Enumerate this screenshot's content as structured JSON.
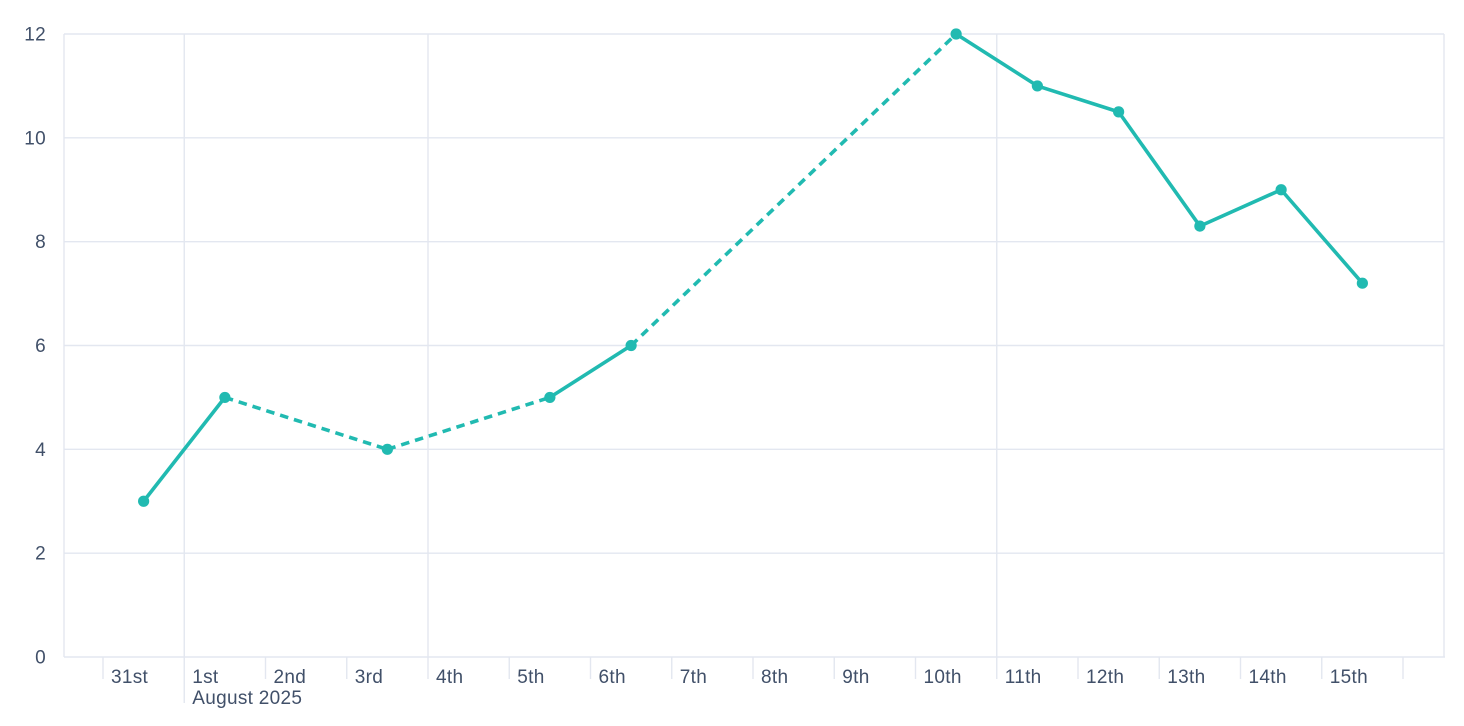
{
  "chart_data": {
    "type": "line",
    "title": "",
    "xlabel": "",
    "ylabel": "",
    "x_categories": [
      "31st",
      "1st",
      "2nd",
      "3rd",
      "4th",
      "5th",
      "6th",
      "7th",
      "8th",
      "9th",
      "10th",
      "11th",
      "12th",
      "13th",
      "14th",
      "15th"
    ],
    "x_month_label": "August 2025",
    "x_month_label_anchor": "1st",
    "y_ticks": [
      0,
      2,
      4,
      6,
      8,
      10,
      12
    ],
    "ylim": [
      0,
      12
    ],
    "points": [
      {
        "x": "31st",
        "value": 3
      },
      {
        "x": "1st",
        "value": 5
      },
      {
        "x": "3rd",
        "value": 4
      },
      {
        "x": "5th",
        "value": 5
      },
      {
        "x": "6th",
        "value": 6
      },
      {
        "x": "10th",
        "value": 12
      },
      {
        "x": "11th",
        "value": 11
      },
      {
        "x": "12th",
        "value": 10.5
      },
      {
        "x": "13th",
        "value": 8.3
      },
      {
        "x": "14th",
        "value": 9
      },
      {
        "x": "15th",
        "value": 7.2
      }
    ],
    "dashed_segments": [
      [
        "1st",
        "3rd"
      ],
      [
        "3rd",
        "5th"
      ],
      [
        "6th",
        "10th"
      ]
    ],
    "vertical_gridlines_at": [
      "1st",
      "4th",
      "11th"
    ],
    "grid": {
      "horizontal": true
    },
    "legend": "none",
    "colors": {
      "line": "#21bab1",
      "marker": "#21bab1",
      "grid": "#e3e7f0",
      "axis_text": "#415069",
      "background": "#ffffff"
    }
  }
}
